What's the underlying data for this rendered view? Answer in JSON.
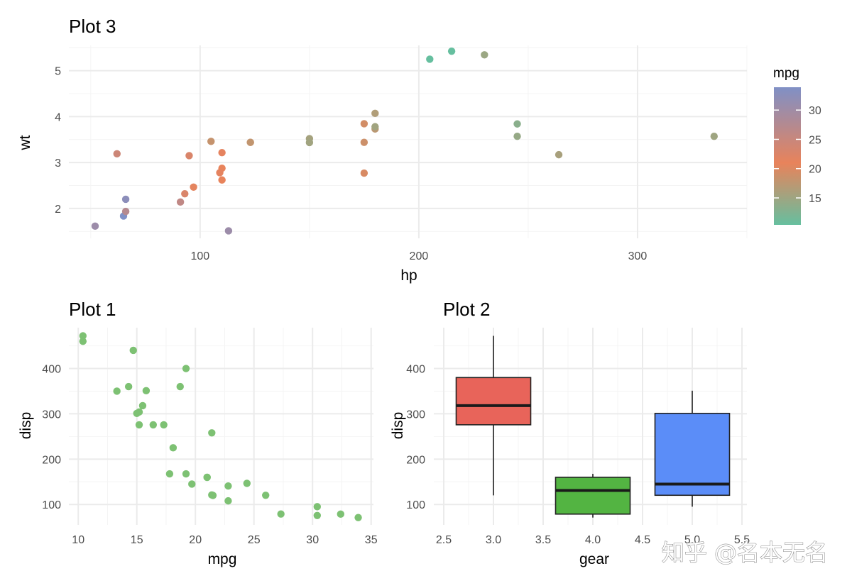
{
  "colors": {
    "grid_major": "#ebebeb",
    "grid_minor": "#f4f4f4",
    "plot1_point": "#7dc173",
    "box_colors": [
      "#e8645a",
      "#53b442",
      "#5b8df8"
    ],
    "gradient_low": "#66bf9f",
    "gradient_mid": "#e8835b",
    "gradient_high": "#8090c6"
  },
  "watermark": "知乎 @名本无名",
  "chart_data": [
    {
      "id": "plot3",
      "type": "scatter",
      "title": "Plot 3",
      "xlabel": "hp",
      "ylabel": "wt",
      "xlim": [
        40,
        350
      ],
      "ylim": [
        1.35,
        5.55
      ],
      "xticks": [
        100,
        200,
        300
      ],
      "xminor": [
        50,
        150,
        250,
        350
      ],
      "yticks": [
        2,
        3,
        4,
        5
      ],
      "yminor": [
        1.5,
        2.5,
        3.5,
        4.5,
        5.5
      ],
      "legend": {
        "title": "mpg",
        "range": [
          10.4,
          33.9
        ],
        "ticks": [
          15,
          20,
          25,
          30
        ],
        "position": "right"
      },
      "points": [
        {
          "x": 110,
          "y": 2.62,
          "c": 21.0
        },
        {
          "x": 110,
          "y": 2.875,
          "c": 21.0
        },
        {
          "x": 93,
          "y": 2.32,
          "c": 22.8
        },
        {
          "x": 110,
          "y": 3.215,
          "c": 21.4
        },
        {
          "x": 175,
          "y": 3.44,
          "c": 18.7
        },
        {
          "x": 105,
          "y": 3.46,
          "c": 18.1
        },
        {
          "x": 245,
          "y": 3.57,
          "c": 14.3
        },
        {
          "x": 62,
          "y": 3.19,
          "c": 24.4
        },
        {
          "x": 95,
          "y": 3.15,
          "c": 22.8
        },
        {
          "x": 123,
          "y": 3.44,
          "c": 19.2
        },
        {
          "x": 123,
          "y": 3.44,
          "c": 17.8
        },
        {
          "x": 180,
          "y": 4.07,
          "c": 16.4
        },
        {
          "x": 180,
          "y": 3.73,
          "c": 17.3
        },
        {
          "x": 180,
          "y": 3.78,
          "c": 15.2
        },
        {
          "x": 205,
          "y": 5.25,
          "c": 10.4
        },
        {
          "x": 215,
          "y": 5.424,
          "c": 10.4
        },
        {
          "x": 230,
          "y": 5.345,
          "c": 14.7
        },
        {
          "x": 66,
          "y": 2.2,
          "c": 32.4
        },
        {
          "x": 52,
          "y": 1.615,
          "c": 30.4
        },
        {
          "x": 65,
          "y": 1.835,
          "c": 33.9
        },
        {
          "x": 97,
          "y": 2.465,
          "c": 21.5
        },
        {
          "x": 150,
          "y": 3.52,
          "c": 15.5
        },
        {
          "x": 150,
          "y": 3.435,
          "c": 15.2
        },
        {
          "x": 245,
          "y": 3.84,
          "c": 13.3
        },
        {
          "x": 175,
          "y": 3.845,
          "c": 19.2
        },
        {
          "x": 66,
          "y": 1.935,
          "c": 27.3
        },
        {
          "x": 91,
          "y": 2.14,
          "c": 26.0
        },
        {
          "x": 113,
          "y": 1.513,
          "c": 30.4
        },
        {
          "x": 264,
          "y": 3.17,
          "c": 15.8
        },
        {
          "x": 175,
          "y": 2.77,
          "c": 19.7
        },
        {
          "x": 335,
          "y": 3.57,
          "c": 15.0
        },
        {
          "x": 109,
          "y": 2.78,
          "c": 21.4
        }
      ]
    },
    {
      "id": "plot1",
      "type": "scatter",
      "title": "Plot 1",
      "xlabel": "mpg",
      "ylabel": "disp",
      "xlim": [
        9.2,
        35.2
      ],
      "ylim": [
        55,
        490
      ],
      "xticks": [
        10,
        15,
        20,
        25,
        30,
        35
      ],
      "xminor": [
        12.5,
        17.5,
        22.5,
        27.5,
        32.5
      ],
      "yticks": [
        100,
        200,
        300,
        400
      ],
      "yminor": [
        150,
        250,
        350,
        450
      ],
      "points": [
        {
          "x": 21.0,
          "y": 160
        },
        {
          "x": 21.0,
          "y": 160
        },
        {
          "x": 22.8,
          "y": 108
        },
        {
          "x": 21.4,
          "y": 258
        },
        {
          "x": 18.7,
          "y": 360
        },
        {
          "x": 18.1,
          "y": 225
        },
        {
          "x": 14.3,
          "y": 360
        },
        {
          "x": 24.4,
          "y": 146.7
        },
        {
          "x": 22.8,
          "y": 140.8
        },
        {
          "x": 19.2,
          "y": 167.6
        },
        {
          "x": 17.8,
          "y": 167.6
        },
        {
          "x": 16.4,
          "y": 275.8
        },
        {
          "x": 17.3,
          "y": 275.8
        },
        {
          "x": 15.2,
          "y": 275.8
        },
        {
          "x": 10.4,
          "y": 472
        },
        {
          "x": 10.4,
          "y": 460
        },
        {
          "x": 14.7,
          "y": 440
        },
        {
          "x": 32.4,
          "y": 78.7
        },
        {
          "x": 30.4,
          "y": 75.7
        },
        {
          "x": 33.9,
          "y": 71.1
        },
        {
          "x": 21.5,
          "y": 120.1
        },
        {
          "x": 15.5,
          "y": 318
        },
        {
          "x": 15.2,
          "y": 304
        },
        {
          "x": 13.3,
          "y": 350
        },
        {
          "x": 19.2,
          "y": 400
        },
        {
          "x": 27.3,
          "y": 79
        },
        {
          "x": 26.0,
          "y": 120.3
        },
        {
          "x": 30.4,
          "y": 95.1
        },
        {
          "x": 15.8,
          "y": 351
        },
        {
          "x": 19.7,
          "y": 145
        },
        {
          "x": 15.0,
          "y": 301
        },
        {
          "x": 21.4,
          "y": 121
        }
      ]
    },
    {
      "id": "plot2",
      "type": "box",
      "title": "Plot 2",
      "xlabel": "gear",
      "ylabel": "disp",
      "xlim": [
        2.4,
        5.55
      ],
      "ylim": [
        55,
        490
      ],
      "xticks": [
        "2.5",
        "3.0",
        "3.5",
        "4.0",
        "4.5",
        "5.0",
        "5.5"
      ],
      "xtick_values": [
        2.5,
        3.0,
        3.5,
        4.0,
        4.5,
        5.0,
        5.5
      ],
      "yticks": [
        100,
        200,
        300,
        400
      ],
      "yminor": [
        150,
        250,
        350,
        450
      ],
      "boxes": [
        {
          "gear": 3,
          "min": 120.1,
          "q1": 275.8,
          "median": 318,
          "q3": 380,
          "max": 472
        },
        {
          "gear": 4,
          "min": 71.1,
          "q1": 78.8,
          "median": 130.9,
          "q3": 160,
          "max": 167.6
        },
        {
          "gear": 5,
          "min": 95.1,
          "q1": 120.3,
          "median": 145,
          "q3": 301,
          "max": 351
        }
      ]
    }
  ]
}
